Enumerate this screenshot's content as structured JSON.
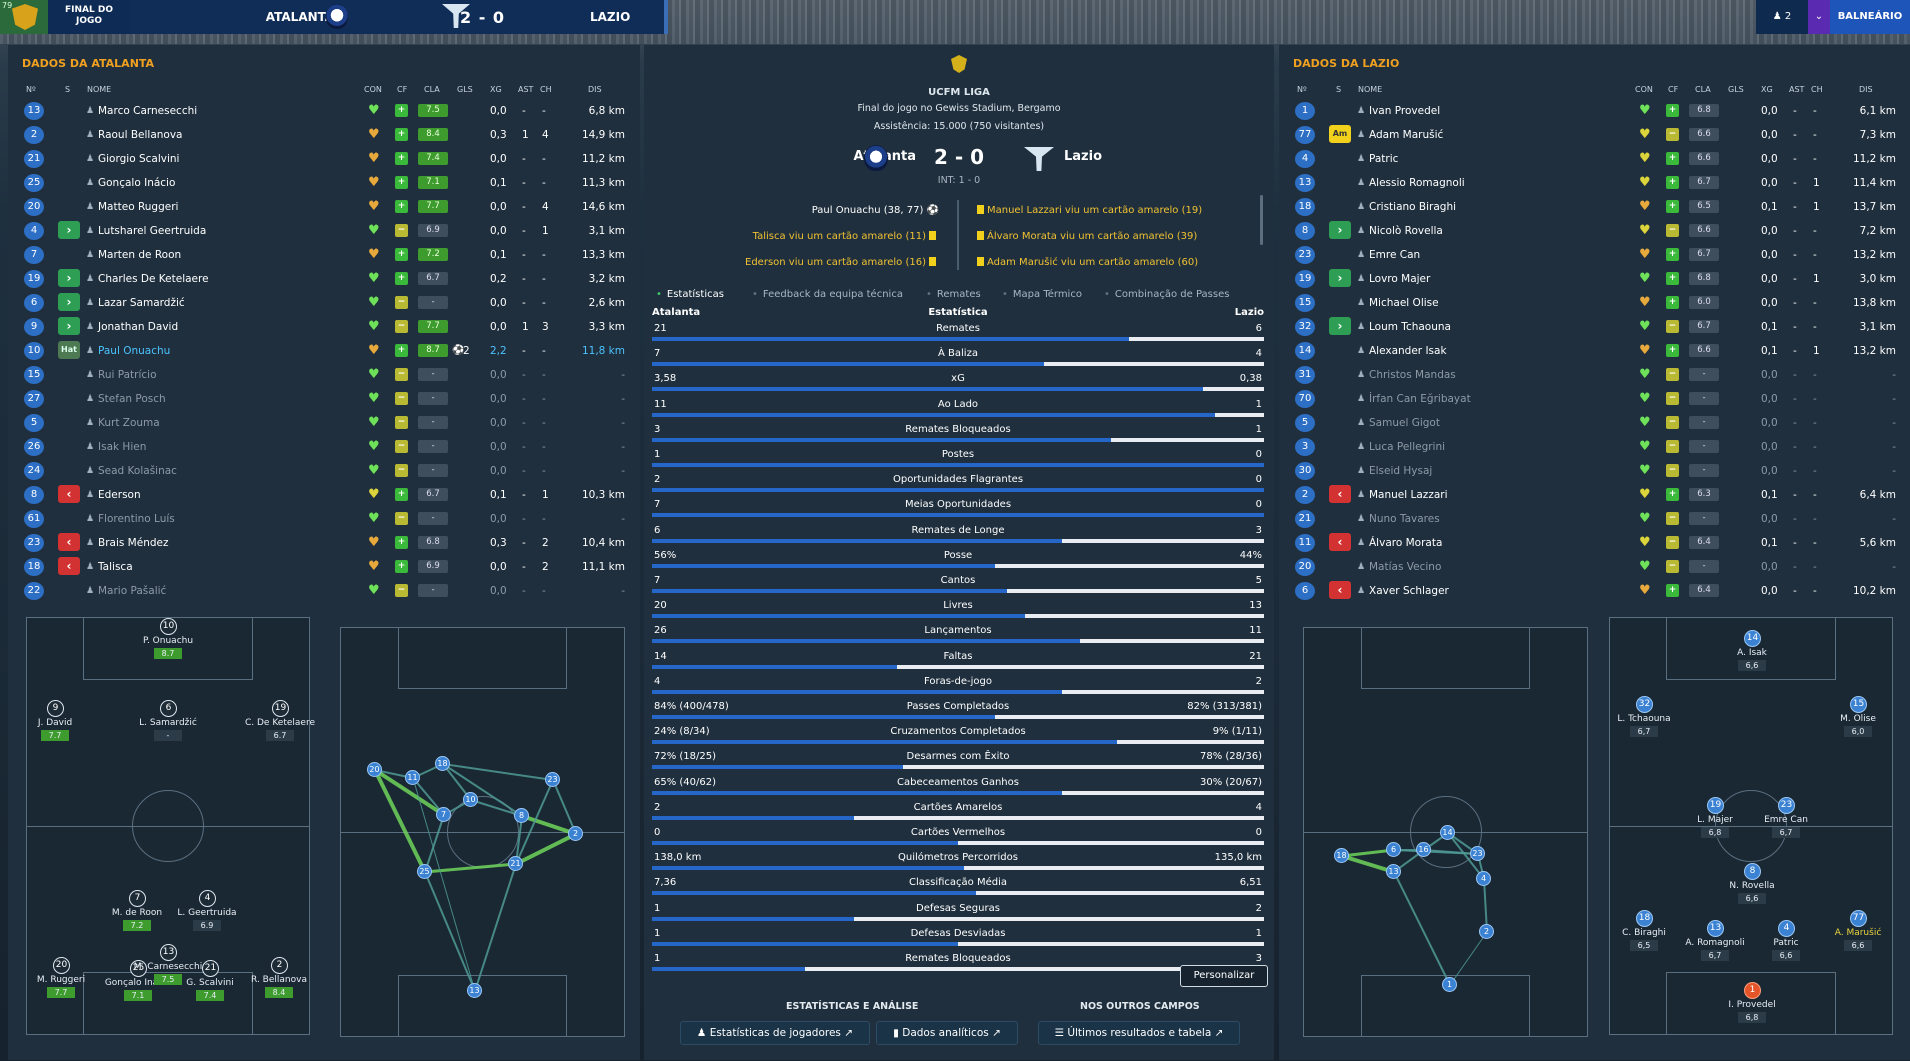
{
  "topbar": {
    "badge_num": "79",
    "final_label_1": "FINAL DO",
    "final_label_2": "JOGO",
    "home": "ATALANTA",
    "score": "2 - 0",
    "away": "LAZIO",
    "users": "2",
    "balneario": "BALNEÁRIO"
  },
  "left": {
    "title": "DADOS DA ATALANTA",
    "headers": {
      "n": "Nº",
      "s": "S",
      "nome": "NOME",
      "con": "CON",
      "cf": "CF",
      "cla": "CLA",
      "gls": "GLS",
      "xg": "XG",
      "ast": "AST",
      "ch": "CH",
      "dis": "DIS"
    },
    "rows": [
      {
        "n": "13",
        "sub": "",
        "name": "Marco Carnesecchi",
        "heart": "g",
        "cf": "g",
        "cla": "7.5",
        "xg": "0,0",
        "ast": "-",
        "ch": "-",
        "dis": "6,8 km"
      },
      {
        "n": "2",
        "sub": "",
        "name": "Raoul Bellanova",
        "heart": "o",
        "cf": "g",
        "cla": "8.4",
        "xg": "0,3",
        "ast": "1",
        "ch": "4",
        "dis": "14,9 km"
      },
      {
        "n": "21",
        "sub": "",
        "name": "Giorgio Scalvini",
        "heart": "o",
        "cf": "g",
        "cla": "7.4",
        "xg": "0,0",
        "ast": "-",
        "ch": "-",
        "dis": "11,2 km"
      },
      {
        "n": "25",
        "sub": "",
        "name": "Gonçalo Inácio",
        "heart": "o",
        "cf": "g",
        "cla": "7.1",
        "xg": "0,1",
        "ast": "-",
        "ch": "-",
        "dis": "11,3 km"
      },
      {
        "n": "20",
        "sub": "",
        "name": "Matteo Ruggeri",
        "heart": "o",
        "cf": "g",
        "cla": "7.7",
        "xg": "0,0",
        "ast": "-",
        "ch": "4",
        "dis": "14,6 km"
      },
      {
        "n": "4",
        "sub": "in",
        "name": "Lutsharel Geertruida",
        "heart": "g",
        "cf": "o",
        "cla": "6.9",
        "xg": "0,0",
        "ast": "-",
        "ch": "1",
        "dis": "3,1 km"
      },
      {
        "n": "7",
        "sub": "",
        "name": "Marten de Roon",
        "heart": "o",
        "cf": "g",
        "cla": "7.2",
        "xg": "0,1",
        "ast": "-",
        "ch": "-",
        "dis": "13,3 km"
      },
      {
        "n": "19",
        "sub": "in",
        "name": "Charles De Ketelaere",
        "heart": "g",
        "cf": "g",
        "cla": "6.7",
        "xg": "0,2",
        "ast": "-",
        "ch": "-",
        "dis": "3,2 km"
      },
      {
        "n": "6",
        "sub": "in",
        "name": "Lazar Samardžić",
        "heart": "g",
        "cf": "o",
        "cla": "-",
        "xg": "0,0",
        "ast": "-",
        "ch": "-",
        "dis": "2,6 km"
      },
      {
        "n": "9",
        "sub": "in",
        "name": "Jonathan David",
        "heart": "g",
        "cf": "o",
        "cla": "7.7",
        "xg": "0,0",
        "ast": "1",
        "ch": "3",
        "dis": "3,3 km"
      },
      {
        "n": "10",
        "sub": "rep",
        "name": "Paul Onuachu",
        "heart": "o",
        "cf": "g",
        "cla": "8.7",
        "gls": "2",
        "xg": "2,2",
        "ast": "-",
        "ch": "-",
        "dis": "11,8 km",
        "hi": true
      },
      {
        "n": "15",
        "sub": "",
        "name": "Rui Patrício",
        "heart": "g",
        "cf": "o",
        "cla": "-",
        "xg": "0,0",
        "ast": "-",
        "ch": "-",
        "dis": "-",
        "dim": true
      },
      {
        "n": "27",
        "sub": "",
        "name": "Stefan Posch",
        "heart": "g",
        "cf": "o",
        "cla": "-",
        "xg": "0,0",
        "ast": "-",
        "ch": "-",
        "dis": "-",
        "dim": true
      },
      {
        "n": "5",
        "sub": "",
        "name": "Kurt Zouma",
        "heart": "g",
        "cf": "o",
        "cla": "-",
        "xg": "0,0",
        "ast": "-",
        "ch": "-",
        "dis": "-",
        "dim": true
      },
      {
        "n": "26",
        "sub": "",
        "name": "Isak Hien",
        "heart": "g",
        "cf": "o",
        "cla": "-",
        "xg": "0,0",
        "ast": "-",
        "ch": "-",
        "dis": "-",
        "dim": true
      },
      {
        "n": "24",
        "sub": "",
        "name": "Sead Kolašinac",
        "heart": "g",
        "cf": "o",
        "cla": "-",
        "xg": "0,0",
        "ast": "-",
        "ch": "-",
        "dis": "-",
        "dim": true
      },
      {
        "n": "8",
        "sub": "out",
        "name": "Ederson",
        "heart": "y",
        "cf": "g",
        "cla": "6.7",
        "xg": "0,1",
        "ast": "-",
        "ch": "1",
        "dis": "10,3 km"
      },
      {
        "n": "61",
        "sub": "",
        "name": "Florentino Luís",
        "heart": "g",
        "cf": "o",
        "cla": "-",
        "xg": "0,0",
        "ast": "-",
        "ch": "-",
        "dis": "-",
        "dim": true
      },
      {
        "n": "23",
        "sub": "out",
        "name": "Brais Méndez",
        "heart": "o",
        "cf": "g",
        "cla": "6.8",
        "xg": "0,3",
        "ast": "-",
        "ch": "2",
        "dis": "10,4 km"
      },
      {
        "n": "18",
        "sub": "out",
        "name": "Talisca",
        "heart": "o",
        "cf": "g",
        "cla": "6.9",
        "xg": "0,0",
        "ast": "-",
        "ch": "2",
        "dis": "11,1 km"
      },
      {
        "n": "22",
        "sub": "",
        "name": "Mario Pašalić",
        "heart": "g",
        "cf": "o",
        "cla": "-",
        "xg": "0,0",
        "ast": "-",
        "ch": "-",
        "dis": "-",
        "dim": true
      }
    ],
    "sub_rep_label": "Hat",
    "formation": [
      {
        "n": "10",
        "name": "P. Onuachu",
        "rat": "8.7"
      },
      {
        "n": "9",
        "name": "J. David",
        "rat": "7.7"
      },
      {
        "n": "6",
        "name": "L. Samardžić",
        "rat": "-"
      },
      {
        "n": "19",
        "name": "C. De Ketelaere",
        "rat": "6.7"
      },
      {
        "n": "7",
        "name": "M. de Roon",
        "rat": "7.2"
      },
      {
        "n": "4",
        "name": "L. Geertruida",
        "rat": "6.9"
      },
      {
        "n": "20",
        "name": "M. Ruggeri",
        "rat": "7.7"
      },
      {
        "n": "25",
        "name": "Gonçalo Inácio",
        "rat": "7.1"
      },
      {
        "n": "21",
        "name": "G. Scalvini",
        "rat": "7.4"
      },
      {
        "n": "2",
        "name": "R. Bellanova",
        "rat": "8.4"
      },
      {
        "n": "13",
        "name": "M. Carnesecchi",
        "rat": "7.5"
      }
    ],
    "pass_map": [
      "20",
      "11",
      "18",
      "23",
      "10",
      "7",
      "8",
      "2",
      "25",
      "21",
      "13"
    ]
  },
  "center": {
    "league": "UCFM LIGA",
    "subtitle": "Final do jogo no Gewiss Stadium, Bergamo",
    "attendance": "Assistência: 15.000 (750 visitantes)",
    "home": "Atalanta",
    "score": "2 - 0",
    "away": "Lazio",
    "ht": "INT: 1 - 0",
    "events_home": [
      {
        "text": "Paul Onuachu (38, 77)",
        "type": "goal"
      },
      {
        "text": "Talisca viu um cartão amarelo (11)",
        "type": "card"
      },
      {
        "text": "Ederson viu um cartão amarelo (16)",
        "type": "card"
      }
    ],
    "events_away": [
      {
        "text": "Manuel Lazzari viu um cartão amarelo (19)"
      },
      {
        "text": "Álvaro Morata viu um cartão amarelo (39)"
      },
      {
        "text": "Adam Marušić viu um cartão amarelo (60)"
      }
    ],
    "tabs": [
      "Estatísticas",
      "Feedback da equipa técnica",
      "Remates",
      "Mapa Térmico",
      "Combinação de Passes"
    ],
    "stat_head": {
      "home": "Atalanta",
      "mid": "Estatística",
      "away": "Lazio"
    },
    "stats": [
      {
        "l": "21",
        "label": "Remates",
        "r": "6",
        "hf": 0.78
      },
      {
        "l": "7",
        "label": "À Baliza",
        "r": "4",
        "hf": 0.64
      },
      {
        "l": "3,58",
        "label": "xG",
        "r": "0,38",
        "hf": 0.9
      },
      {
        "l": "11",
        "label": "Ao Lado",
        "r": "1",
        "hf": 0.92
      },
      {
        "l": "3",
        "label": "Remates Bloqueados",
        "r": "1",
        "hf": 0.75
      },
      {
        "l": "1",
        "label": "Postes",
        "r": "0",
        "hf": 1
      },
      {
        "l": "2",
        "label": "Oportunidades Flagrantes",
        "r": "0",
        "hf": 1
      },
      {
        "l": "7",
        "label": "Meias Oportunidades",
        "r": "0",
        "hf": 1
      },
      {
        "l": "6",
        "label": "Remates de Longe",
        "r": "3",
        "hf": 0.67
      },
      {
        "l": "56%",
        "label": "Posse",
        "r": "44%",
        "hf": 0.56
      },
      {
        "l": "7",
        "label": "Cantos",
        "r": "5",
        "hf": 0.58
      },
      {
        "l": "20",
        "label": "Livres",
        "r": "13",
        "hf": 0.61
      },
      {
        "l": "26",
        "label": "Lançamentos",
        "r": "11",
        "hf": 0.7
      },
      {
        "l": "14",
        "label": "Faltas",
        "r": "21",
        "hf": 0.4
      },
      {
        "l": "4",
        "label": "Foras-de-jogo",
        "r": "2",
        "hf": 0.67
      },
      {
        "l": "84% (400/478)",
        "label": "Passes Completados",
        "r": "82% (313/381)",
        "hf": 0.56
      },
      {
        "l": "24% (8/34)",
        "label": "Cruzamentos Completados",
        "r": "9% (1/11)",
        "hf": 0.76
      },
      {
        "l": "72% (18/25)",
        "label": "Desarmes com Êxito",
        "r": "78% (28/36)",
        "hf": 0.41
      },
      {
        "l": "65% (40/62)",
        "label": "Cabeceamentos Ganhos",
        "r": "30% (20/67)",
        "hf": 0.67
      },
      {
        "l": "2",
        "label": "Cartões Amarelos",
        "r": "4",
        "hf": 0.33
      },
      {
        "l": "0",
        "label": "Cartões Vermelhos",
        "r": "0",
        "hf": 0.5
      },
      {
        "l": "138,0 km",
        "label": "Quilómetros Percorridos",
        "r": "135,0 km",
        "hf": 0.51
      },
      {
        "l": "7,36",
        "label": "Classificação Média",
        "r": "6,51",
        "hf": 0.53
      },
      {
        "l": "1",
        "label": "Defesas Seguras",
        "r": "2",
        "hf": 0.33
      },
      {
        "l": "1",
        "label": "Defesas Desviadas",
        "r": "1",
        "hf": 0.5
      },
      {
        "l": "1",
        "label": "Remates Bloqueados",
        "r": "3",
        "hf": 0.25
      }
    ],
    "personalize": "Personalizar",
    "section1": "ESTATÍSTICAS E ANÁLISE",
    "section2": "NOS OUTROS CAMPOS",
    "btn1": "Estatísticas de jogadores",
    "btn2": "Dados analíticos",
    "btn3": "Últimos resultados e tabela"
  },
  "right": {
    "title": "DADOS DA LAZIO",
    "headers": {
      "n": "Nº",
      "s": "S",
      "nome": "NOME",
      "con": "CON",
      "cf": "CF",
      "cla": "CLA",
      "gls": "GLS",
      "xg": "XG",
      "ast": "AST",
      "ch": "CH",
      "dis": "DIS"
    },
    "rows": [
      {
        "n": "1",
        "sub": "",
        "name": "Ivan Provedel",
        "heart": "g",
        "cf": "g",
        "cla": "6.8",
        "xg": "0,0",
        "ast": "-",
        "ch": "-",
        "dis": "6,1 km"
      },
      {
        "n": "77",
        "sub": "yel",
        "name": "Adam Marušić",
        "heart": "y",
        "cf": "o",
        "cla": "6.6",
        "xg": "0,0",
        "ast": "-",
        "ch": "-",
        "dis": "7,3 km"
      },
      {
        "n": "4",
        "sub": "",
        "name": "Patric",
        "heart": "y",
        "cf": "g",
        "cla": "6.6",
        "xg": "0,0",
        "ast": "-",
        "ch": "-",
        "dis": "11,2 km"
      },
      {
        "n": "13",
        "sub": "",
        "name": "Alessio Romagnoli",
        "heart": "y",
        "cf": "g",
        "cla": "6.7",
        "xg": "0,0",
        "ast": "-",
        "ch": "1",
        "dis": "11,4 km"
      },
      {
        "n": "18",
        "sub": "",
        "name": "Cristiano Biraghi",
        "heart": "o",
        "cf": "g",
        "cla": "6.5",
        "xg": "0,1",
        "ast": "-",
        "ch": "1",
        "dis": "13,7 km"
      },
      {
        "n": "8",
        "sub": "in",
        "name": "Nicolò Rovella",
        "heart": "y",
        "cf": "o",
        "cla": "6.6",
        "xg": "0,0",
        "ast": "-",
        "ch": "-",
        "dis": "7,2 km"
      },
      {
        "n": "23",
        "sub": "",
        "name": "Emre Can",
        "heart": "o",
        "cf": "g",
        "cla": "6.7",
        "xg": "0,0",
        "ast": "-",
        "ch": "-",
        "dis": "13,2 km"
      },
      {
        "n": "19",
        "sub": "in",
        "name": "Lovro Majer",
        "heart": "g",
        "cf": "g",
        "cla": "6.8",
        "xg": "0,0",
        "ast": "-",
        "ch": "1",
        "dis": "3,0 km"
      },
      {
        "n": "15",
        "sub": "",
        "name": "Michael Olise",
        "heart": "o",
        "cf": "g",
        "cla": "6.0",
        "xg": "0,0",
        "ast": "-",
        "ch": "-",
        "dis": "13,8 km"
      },
      {
        "n": "32",
        "sub": "in",
        "name": "Loum Tchaouna",
        "heart": "g",
        "cf": "o",
        "cla": "6.7",
        "xg": "0,1",
        "ast": "-",
        "ch": "-",
        "dis": "3,1 km"
      },
      {
        "n": "14",
        "sub": "",
        "name": "Alexander Isak",
        "heart": "o",
        "cf": "g",
        "cla": "6.6",
        "xg": "0,1",
        "ast": "-",
        "ch": "1",
        "dis": "13,2 km"
      },
      {
        "n": "31",
        "sub": "",
        "name": "Christos Mandas",
        "heart": "g",
        "cf": "o",
        "cla": "-",
        "xg": "0,0",
        "ast": "-",
        "ch": "-",
        "dis": "-",
        "dim": true
      },
      {
        "n": "70",
        "sub": "",
        "name": "İrfan Can Eğribayat",
        "heart": "g",
        "cf": "o",
        "cla": "-",
        "xg": "0,0",
        "ast": "-",
        "ch": "-",
        "dis": "-",
        "dim": true
      },
      {
        "n": "5",
        "sub": "",
        "name": "Samuel Gigot",
        "heart": "g",
        "cf": "o",
        "cla": "-",
        "xg": "0,0",
        "ast": "-",
        "ch": "-",
        "dis": "-",
        "dim": true
      },
      {
        "n": "3",
        "sub": "",
        "name": "Luca Pellegrini",
        "heart": "g",
        "cf": "o",
        "cla": "-",
        "xg": "0,0",
        "ast": "-",
        "ch": "-",
        "dis": "-",
        "dim": true
      },
      {
        "n": "30",
        "sub": "",
        "name": "Elseid Hysaj",
        "heart": "g",
        "cf": "o",
        "cla": "-",
        "xg": "0,0",
        "ast": "-",
        "ch": "-",
        "dis": "-",
        "dim": true
      },
      {
        "n": "2",
        "sub": "out",
        "name": "Manuel Lazzari",
        "heart": "y",
        "cf": "g",
        "cla": "6.3",
        "xg": "0,1",
        "ast": "-",
        "ch": "-",
        "dis": "6,4 km"
      },
      {
        "n": "21",
        "sub": "",
        "name": "Nuno Tavares",
        "heart": "g",
        "cf": "o",
        "cla": "-",
        "xg": "0,0",
        "ast": "-",
        "ch": "-",
        "dis": "-",
        "dim": true
      },
      {
        "n": "11",
        "sub": "out",
        "name": "Álvaro Morata",
        "heart": "y",
        "cf": "o",
        "cla": "6.4",
        "xg": "0,1",
        "ast": "-",
        "ch": "-",
        "dis": "5,6 km"
      },
      {
        "n": "20",
        "sub": "",
        "name": "Matías Vecino",
        "heart": "g",
        "cf": "o",
        "cla": "-",
        "xg": "0,0",
        "ast": "-",
        "ch": "-",
        "dis": "-",
        "dim": true
      },
      {
        "n": "6",
        "sub": "out",
        "name": "Xaver Schlager",
        "heart": "o",
        "cf": "g",
        "cla": "6.4",
        "xg": "0,0",
        "ast": "-",
        "ch": "-",
        "dis": "10,2 km"
      }
    ],
    "sub_yel_label": "Am",
    "formation": [
      {
        "n": "14",
        "name": "A. Isak",
        "rat": "6,6"
      },
      {
        "n": "32",
        "name": "L. Tchaouna",
        "rat": "6,7"
      },
      {
        "n": "15",
        "name": "M. Olise",
        "rat": "6,0"
      },
      {
        "n": "19",
        "name": "L. Majer",
        "rat": "6,8"
      },
      {
        "n": "23",
        "name": "Emre Can",
        "rat": "6,7"
      },
      {
        "n": "8",
        "name": "N. Rovella",
        "rat": "6,6"
      },
      {
        "n": "18",
        "name": "C. Biraghi",
        "rat": "6,5"
      },
      {
        "n": "13",
        "name": "A. Romagnoli",
        "rat": "6,7"
      },
      {
        "n": "4",
        "name": "Patric",
        "rat": "6,6"
      },
      {
        "n": "77",
        "name": "A. Marušić",
        "rat": "6,6"
      },
      {
        "n": "1",
        "name": "I. Provedel",
        "rat": "6,8"
      }
    ],
    "pass_map": [
      "18",
      "6",
      "13",
      "16",
      "14",
      "23",
      "4",
      "2",
      "1"
    ]
  }
}
